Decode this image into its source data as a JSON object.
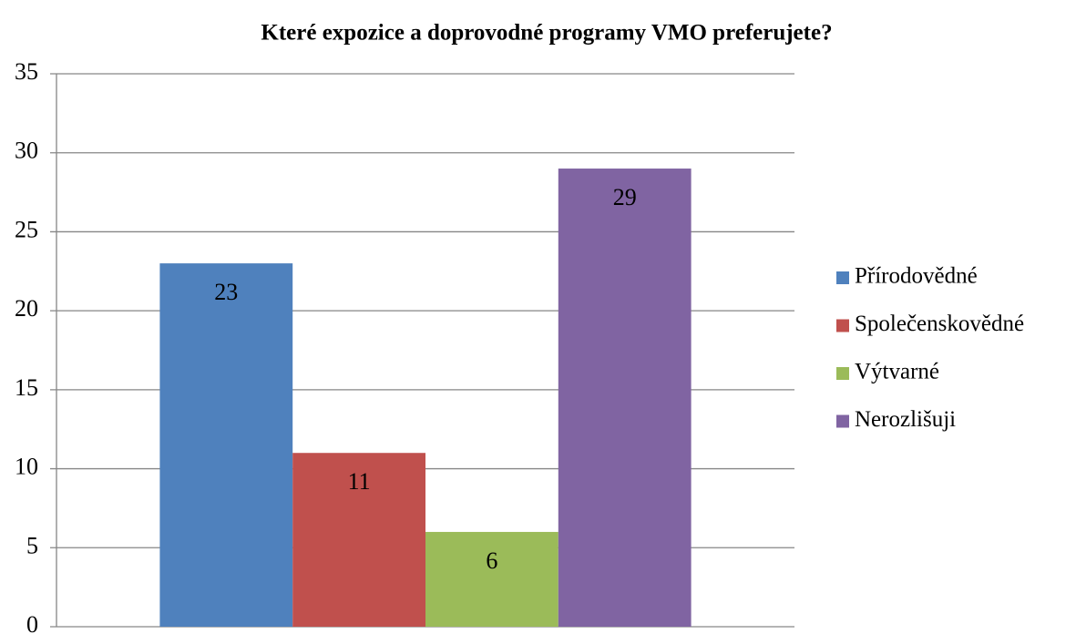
{
  "chart_data": {
    "type": "bar",
    "title": "Které expozice a doprovodné programy VMO preferujete?",
    "categories": [
      null
    ],
    "series": [
      {
        "name": "Přírodovědné",
        "color": "#4f81bd",
        "values": [
          23
        ]
      },
      {
        "name": "Společenskovědné",
        "color": "#c0504d",
        "values": [
          11
        ]
      },
      {
        "name": "Výtvarné",
        "color": "#9bbb59",
        "values": [
          6
        ]
      },
      {
        "name": "Nerozlišuji",
        "color": "#8064a2",
        "values": [
          29
        ]
      }
    ],
    "ylim": [
      0,
      35
    ],
    "yticks": [
      0,
      5,
      10,
      15,
      20,
      25,
      30,
      35
    ],
    "grid": true,
    "legend": "right",
    "data_labels": true
  }
}
